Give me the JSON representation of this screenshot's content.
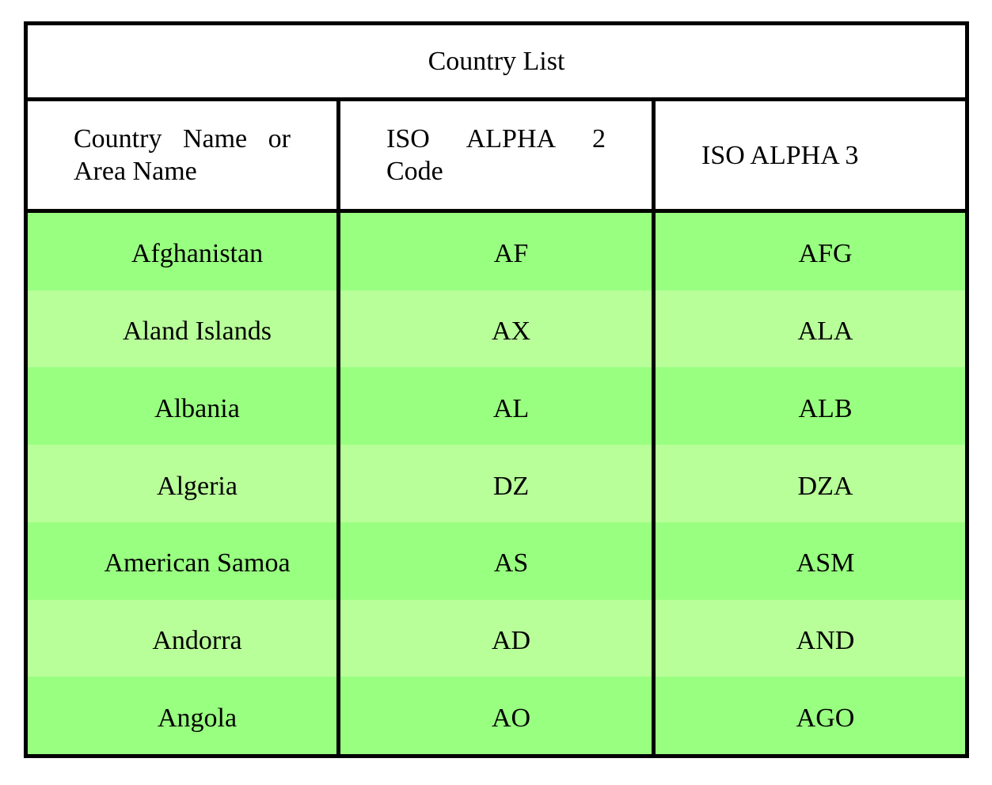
{
  "title": "Country List",
  "header": {
    "col1": {
      "line1": "Country Name or",
      "line2": "Area Name"
    },
    "col2": {
      "line1": "ISO ALPHA 2",
      "line2": "Code"
    },
    "col3": {
      "line1": "ISO ALPHA 3"
    }
  },
  "rows": [
    {
      "name": "Afghanistan",
      "alpha2": "AF",
      "alpha3": "AFG"
    },
    {
      "name": "Aland Islands",
      "alpha2": "AX",
      "alpha3": "ALA"
    },
    {
      "name": "Albania",
      "alpha2": "AL",
      "alpha3": "ALB"
    },
    {
      "name": "Algeria",
      "alpha2": "DZ",
      "alpha3": "DZA"
    },
    {
      "name": "American Samoa",
      "alpha2": "AS",
      "alpha3": "ASM"
    },
    {
      "name": "Andorra",
      "alpha2": "AD",
      "alpha3": "AND"
    },
    {
      "name": "Angola",
      "alpha2": "AO",
      "alpha3": "AGO"
    }
  ],
  "colors": {
    "row_dark": "#99FF80",
    "row_light": "#B8FF99",
    "border": "#000000",
    "header_bg": "#FFFFFF",
    "page_bg": "#FFFFFF",
    "text": "#000000"
  }
}
